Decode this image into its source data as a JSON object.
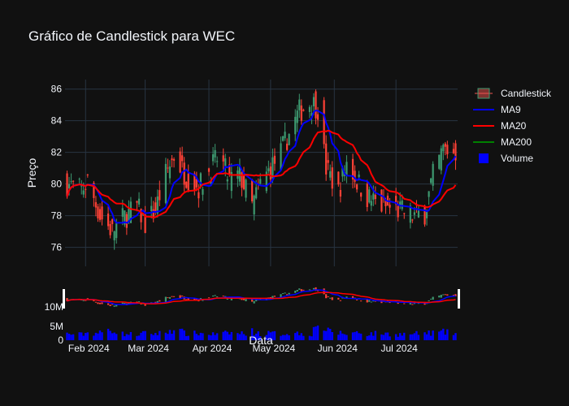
{
  "title": "Gráfico de Candlestick para WEC",
  "legend": [
    {
      "key": "candle",
      "label": "Candlestick",
      "color": "#26a69a",
      "color2": "#ef5350"
    },
    {
      "key": "ma9",
      "label": "MA9",
      "color": "#0000ff"
    },
    {
      "key": "ma20",
      "label": "MA20",
      "color": "#ff0000"
    },
    {
      "key": "ma200",
      "label": "MA200",
      "color": "#008000"
    },
    {
      "key": "volume",
      "label": "Volume",
      "color": "#0000ff"
    }
  ],
  "chart_data": {
    "type": "candlestick",
    "title": "Gráfico de Candlestick para WEC",
    "xlabel": "Data",
    "ylabel": "Preço",
    "ylim": [
      74.8,
      86.6
    ],
    "yticks": [
      76,
      78,
      80,
      82,
      84,
      86
    ],
    "volume_ticks": [
      {
        "v": 0,
        "label": "0"
      },
      {
        "v": 5000000,
        "label": "5M"
      }
    ],
    "navigator_ticks": [
      {
        "v": 10000000,
        "label": "10M"
      }
    ],
    "xticks": [
      {
        "date": "2024-02-01",
        "label": "Feb 2024"
      },
      {
        "date": "2024-03-01",
        "label": "Mar 2024"
      },
      {
        "date": "2024-04-01",
        "label": "Apr 2024"
      },
      {
        "date": "2024-05-01",
        "label": "May 2024"
      },
      {
        "date": "2024-06-01",
        "label": "Jun 2024"
      },
      {
        "date": "2024-07-01",
        "label": "Jul 2024"
      }
    ],
    "xrange": [
      "2024-01-22",
      "2024-07-31"
    ],
    "colors": {
      "up": "#3d9970",
      "down": "#ff4136",
      "ma9": "#0000ff",
      "ma20": "#ff0000",
      "ma200": "#008000",
      "volume": "#0000ff"
    },
    "anchors": [
      {
        "date": "2024-01-23",
        "close": 80.0,
        "vol": 2.2
      },
      {
        "date": "2024-01-30",
        "close": 79.6,
        "vol": 2.0
      },
      {
        "date": "2024-02-02",
        "close": 80.2,
        "vol": 2.6
      },
      {
        "date": "2024-02-08",
        "close": 78.0,
        "vol": 2.5
      },
      {
        "date": "2024-02-14",
        "close": 77.0,
        "vol": 3.8
      },
      {
        "date": "2024-02-19",
        "close": 77.8,
        "vol": 2.2
      },
      {
        "date": "2024-02-26",
        "close": 78.6,
        "vol": 2.0
      },
      {
        "date": "2024-03-01",
        "close": 77.5,
        "vol": 2.4
      },
      {
        "date": "2024-03-06",
        "close": 78.4,
        "vol": 2.3
      },
      {
        "date": "2024-03-11",
        "close": 80.6,
        "vol": 2.6
      },
      {
        "date": "2024-03-15",
        "close": 81.8,
        "vol": 4.2
      },
      {
        "date": "2024-03-21",
        "close": 80.5,
        "vol": 2.2
      },
      {
        "date": "2024-03-27",
        "close": 79.8,
        "vol": 2.4
      },
      {
        "date": "2024-04-01",
        "close": 80.8,
        "vol": 2.2
      },
      {
        "date": "2024-04-06",
        "close": 81.8,
        "vol": 2.0
      },
      {
        "date": "2024-04-11",
        "close": 80.2,
        "vol": 2.6
      },
      {
        "date": "2024-04-16",
        "close": 80.6,
        "vol": 2.3
      },
      {
        "date": "2024-04-22",
        "close": 78.6,
        "vol": 3.0
      },
      {
        "date": "2024-04-26",
        "close": 80.0,
        "vol": 2.3
      },
      {
        "date": "2024-05-01",
        "close": 81.0,
        "vol": 2.4
      },
      {
        "date": "2024-05-06",
        "close": 82.0,
        "vol": 2.2
      },
      {
        "date": "2024-05-10",
        "close": 83.2,
        "vol": 2.6
      },
      {
        "date": "2024-05-15",
        "close": 84.6,
        "vol": 2.4
      },
      {
        "date": "2024-05-21",
        "close": 85.2,
        "vol": 2.2
      },
      {
        "date": "2024-05-24",
        "close": 84.8,
        "vol": 6.5
      },
      {
        "date": "2024-05-28",
        "close": 81.0,
        "vol": 3.2
      },
      {
        "date": "2024-06-03",
        "close": 79.5,
        "vol": 2.6
      },
      {
        "date": "2024-06-07",
        "close": 81.4,
        "vol": 2.2
      },
      {
        "date": "2024-06-12",
        "close": 80.2,
        "vol": 2.8
      },
      {
        "date": "2024-06-17",
        "close": 79.2,
        "vol": 2.2
      },
      {
        "date": "2024-06-24",
        "close": 78.6,
        "vol": 2.4
      },
      {
        "date": "2024-07-01",
        "close": 78.4,
        "vol": 2.0
      },
      {
        "date": "2024-07-10",
        "close": 78.0,
        "vol": 2.2
      },
      {
        "date": "2024-07-15",
        "close": 78.2,
        "vol": 2.4
      },
      {
        "date": "2024-07-19",
        "close": 80.5,
        "vol": 2.6
      },
      {
        "date": "2024-07-24",
        "close": 82.2,
        "vol": 2.8
      },
      {
        "date": "2024-07-30",
        "close": 82.0,
        "vol": 2.4
      }
    ]
  }
}
